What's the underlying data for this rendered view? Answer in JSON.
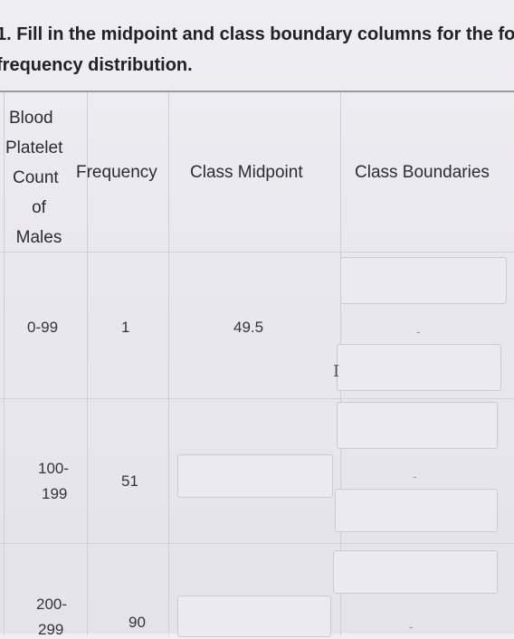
{
  "question": {
    "line1": "1. Fill in the midpoint and class boundary columns for the fo",
    "line2": "frequency distribution."
  },
  "table": {
    "header_col1_lines": [
      "Blood",
      "Platelet",
      "Count",
      "of",
      "Males"
    ],
    "header_frequency": "Frequency",
    "header_midpoint": "Class Midpoint",
    "header_boundaries": "Class Boundaries",
    "rows": [
      {
        "class": "0-99",
        "frequency": "1",
        "midpoint": "49.5",
        "boundary_mark": "-"
      },
      {
        "class_lines": [
          "100-",
          "199"
        ],
        "frequency": "51",
        "midpoint": "",
        "boundary_mark": "-"
      },
      {
        "class_lines": [
          "200-",
          "299"
        ],
        "frequency": "90",
        "midpoint": "",
        "boundary_mark": "-"
      }
    ]
  },
  "icons": {
    "cursor": "text-cursor-icon"
  }
}
